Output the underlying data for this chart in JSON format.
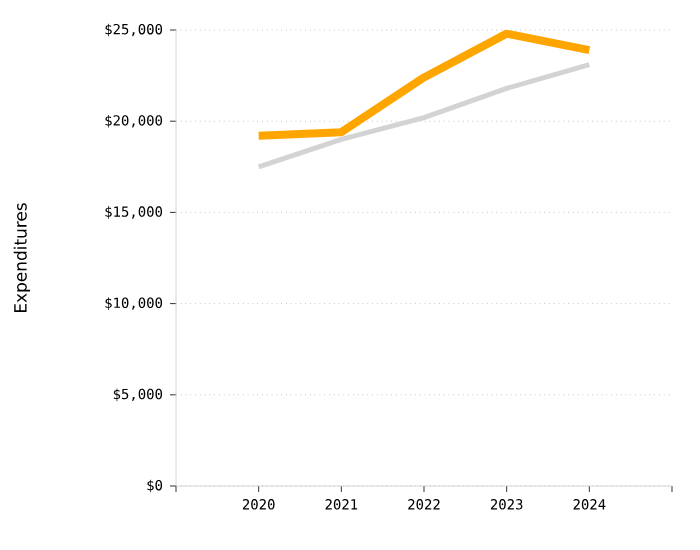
{
  "chart_data": {
    "type": "line",
    "ylabel": "Expenditures",
    "categories": [
      "2020",
      "2021",
      "2022",
      "2023",
      "2024"
    ],
    "series": [
      {
        "color": "#d3d3d3",
        "values": [
          17500,
          19000,
          20200,
          21800,
          23100
        ]
      },
      {
        "color": "#ffa500",
        "values": [
          19200,
          19400,
          22400,
          24800,
          23900
        ]
      }
    ],
    "ylim": [
      0,
      25000
    ],
    "yticks": [
      {
        "value": 0,
        "label": "$0"
      },
      {
        "value": 5000,
        "label": "$5,000"
      },
      {
        "value": 10000,
        "label": "$10,000"
      },
      {
        "value": 15000,
        "label": "$15,000"
      },
      {
        "value": 20000,
        "label": "$20,000"
      },
      {
        "value": 25000,
        "label": "$25,000"
      }
    ],
    "grid": "y"
  }
}
